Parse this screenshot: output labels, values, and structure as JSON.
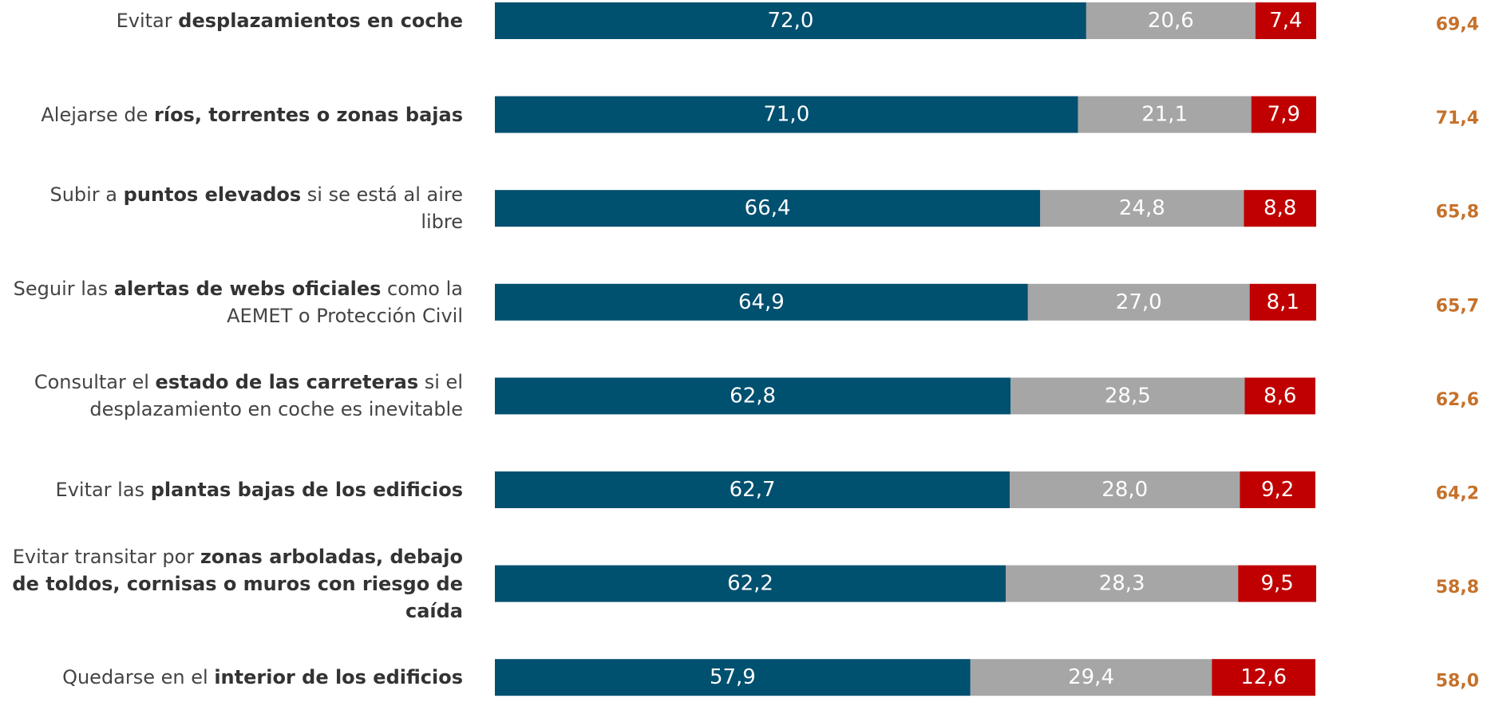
{
  "chart_data": {
    "type": "stacked_bar_horizontal",
    "categories": [
      [
        "Evitar ",
        "desplazamientos en coche"
      ],
      [
        "Alejarse de ",
        "ríos, torrentes o zonas bajas"
      ],
      [
        "Subir a ",
        "puntos elevados",
        " si se está al aire libre"
      ],
      [
        "Seguir las ",
        "alertas de webs oficiales",
        " como la AEMET o Protección Civil"
      ],
      [
        "Consultar el ",
        "estado de las carreteras",
        " si el desplazamiento en coche es inevitable"
      ],
      [
        "Evitar las ",
        "plantas bajas de los edificios"
      ],
      [
        "Evitar transitar por ",
        "zonas arboladas, debajo de toldos, cornisas o muros con riesgo de caída"
      ],
      [
        "Quedarse en el ",
        "interior de los edificios"
      ]
    ],
    "xlim": [
      0,
      100
    ],
    "series": [
      {
        "color": "#00506f",
        "values": [
          72.0,
          71.0,
          66.4,
          64.9,
          62.8,
          62.7,
          62.2,
          57.9
        ],
        "value_labels": [
          "72,0",
          "71,0",
          "66,4",
          "64,9",
          "62,8",
          "62,7",
          "62,2",
          "57,9"
        ]
      },
      {
        "color": "#a6a6a6",
        "values": [
          20.6,
          21.1,
          24.8,
          27.0,
          28.5,
          28.0,
          28.3,
          29.4
        ],
        "value_labels": [
          "20,6",
          "21,1",
          "24,8",
          "27,0",
          "28,5",
          "28,0",
          "28,3",
          "29,4"
        ]
      },
      {
        "color": "#c00000",
        "values": [
          7.4,
          7.9,
          8.8,
          8.1,
          8.6,
          9.2,
          9.5,
          12.6
        ],
        "value_labels": [
          "7,4",
          "7,9",
          "8,8",
          "8,1",
          "8,6",
          "9,2",
          "9,5",
          "12,6"
        ]
      }
    ],
    "comparison": {
      "color": "#c5712a",
      "values": [
        69.4,
        71.4,
        65.8,
        65.7,
        62.6,
        64.2,
        58.8,
        58.0
      ],
      "value_labels": [
        "69,4",
        "71,4",
        "65,8",
        "65,7",
        "62,6",
        "64,2",
        "58,8",
        "58,0"
      ]
    }
  }
}
